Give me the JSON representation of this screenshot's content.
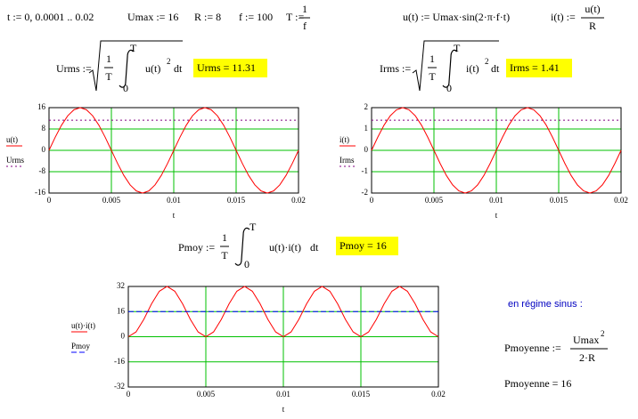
{
  "header": {
    "t_def": "t := 0, 0.0001 .. 0.02",
    "umax": "Umax := 16",
    "r": "R := 8",
    "f": "f := 100",
    "T_lhs": "T :=",
    "T_num": "1",
    "T_den": "f",
    "u_def": "u(t) := Umax·sin(2·π·f·t)",
    "i_lhs": "i(t) :=",
    "i_num": "u(t)",
    "i_den": "R"
  },
  "urms": {
    "lhs": "Urms :=",
    "num": "1",
    "den": "T",
    "upper": "T",
    "lower": "0",
    "integrand": "u(t)",
    "exp": "2",
    "dt": "dt",
    "result": "Urms = 11.31"
  },
  "irms": {
    "lhs": "Irms :=",
    "num": "1",
    "den": "T",
    "upper": "T",
    "lower": "0",
    "integrand": "i(t)",
    "exp": "2",
    "dt": "dt",
    "result": "Irms = 1.41"
  },
  "pmoy": {
    "lhs": "Pmoy :=",
    "num": "1",
    "den": "T",
    "upper": "T",
    "lower": "0",
    "integrand": "u(t)·i(t)",
    "dt": "dt",
    "result": "Pmoy = 16"
  },
  "pmoyenne": {
    "note": "en régime sinus :",
    "lhs": "Pmoyenne :=",
    "num": "Umax",
    "exp": "2",
    "den": "2·R",
    "result": "Pmoyenne = 16"
  },
  "chart_data": [
    {
      "type": "line",
      "xlabel": "t",
      "xlim": [
        0,
        0.02
      ],
      "xticks": [
        0,
        0.005,
        0.01,
        0.015,
        0.02
      ],
      "ylim": [
        -16,
        16
      ],
      "yticks": [
        -16,
        -8,
        0,
        8,
        16
      ],
      "grid": true,
      "grid_color": "#00c000",
      "x": [
        0,
        0.0005,
        0.001,
        0.0015,
        0.002,
        0.0025,
        0.003,
        0.0035,
        0.004,
        0.0045,
        0.005,
        0.0055,
        0.006,
        0.0065,
        0.007,
        0.0075,
        0.008,
        0.0085,
        0.009,
        0.0095,
        0.01,
        0.0105,
        0.011,
        0.0115,
        0.012,
        0.0125,
        0.013,
        0.0135,
        0.014,
        0.0145,
        0.015,
        0.0155,
        0.016,
        0.0165,
        0.017,
        0.0175,
        0.018,
        0.0185,
        0.019,
        0.0195,
        0.02
      ],
      "series": [
        {
          "name": "u(t)",
          "color": "#ff0000",
          "values": [
            0,
            4.94,
            9.4,
            12.94,
            15.22,
            16,
            15.22,
            12.94,
            9.4,
            4.94,
            0,
            -4.94,
            -9.4,
            -12.94,
            -15.22,
            -16,
            -15.22,
            -12.94,
            -9.4,
            -4.94,
            0,
            4.94,
            9.4,
            12.94,
            15.22,
            16,
            15.22,
            12.94,
            9.4,
            4.94,
            0,
            -4.94,
            -9.4,
            -12.94,
            -15.22,
            -16,
            -15.22,
            -12.94,
            -9.4,
            -4.94,
            0
          ]
        },
        {
          "name": "Urms",
          "color": "#800080",
          "style": "dotted",
          "value": 11.31
        }
      ]
    },
    {
      "type": "line",
      "xlabel": "t",
      "xlim": [
        0,
        0.02
      ],
      "xticks": [
        0,
        0.005,
        0.01,
        0.015,
        0.02
      ],
      "ylim": [
        -2,
        2
      ],
      "yticks": [
        -2,
        -1,
        0,
        1,
        2
      ],
      "grid": true,
      "grid_color": "#00c000",
      "x": [
        0,
        0.0005,
        0.001,
        0.0015,
        0.002,
        0.0025,
        0.003,
        0.0035,
        0.004,
        0.0045,
        0.005,
        0.0055,
        0.006,
        0.0065,
        0.007,
        0.0075,
        0.008,
        0.0085,
        0.009,
        0.0095,
        0.01,
        0.0105,
        0.011,
        0.0115,
        0.012,
        0.0125,
        0.013,
        0.0135,
        0.014,
        0.0145,
        0.015,
        0.0155,
        0.016,
        0.0165,
        0.017,
        0.0175,
        0.018,
        0.0185,
        0.019,
        0.0195,
        0.02
      ],
      "series": [
        {
          "name": "i(t)",
          "color": "#ff0000",
          "values": [
            0,
            0.62,
            1.18,
            1.62,
            1.9,
            2,
            1.9,
            1.62,
            1.18,
            0.62,
            0,
            -0.62,
            -1.18,
            -1.62,
            -1.9,
            -2,
            -1.9,
            -1.62,
            -1.18,
            -0.62,
            0,
            0.62,
            1.18,
            1.62,
            1.9,
            2,
            1.9,
            1.62,
            1.18,
            0.62,
            0,
            -0.62,
            -1.18,
            -1.62,
            -1.9,
            -2,
            -1.9,
            -1.62,
            -1.18,
            -0.62,
            0
          ]
        },
        {
          "name": "Irms",
          "color": "#800080",
          "style": "dotted",
          "value": 1.41
        }
      ]
    },
    {
      "type": "line",
      "xlabel": "t",
      "xlim": [
        0,
        0.02
      ],
      "xticks": [
        0,
        0.005,
        0.01,
        0.015,
        0.02
      ],
      "ylim": [
        -32,
        32
      ],
      "yticks": [
        -32,
        -16,
        0,
        16,
        32
      ],
      "grid": true,
      "grid_color": "#00c000",
      "x": [
        0,
        0.0005,
        0.001,
        0.0015,
        0.002,
        0.0025,
        0.003,
        0.0035,
        0.004,
        0.0045,
        0.005,
        0.0055,
        0.006,
        0.0065,
        0.007,
        0.0075,
        0.008,
        0.0085,
        0.009,
        0.0095,
        0.01,
        0.0105,
        0.011,
        0.0115,
        0.012,
        0.0125,
        0.013,
        0.0135,
        0.014,
        0.0145,
        0.015,
        0.0155,
        0.016,
        0.0165,
        0.017,
        0.0175,
        0.018,
        0.0185,
        0.019,
        0.0195,
        0.02
      ],
      "series": [
        {
          "name": "u(t)·i(t)",
          "color": "#ff0000",
          "values": [
            0,
            3.06,
            11.06,
            20.94,
            28.94,
            32,
            28.94,
            20.94,
            11.06,
            3.06,
            0,
            3.06,
            11.06,
            20.94,
            28.94,
            32,
            28.94,
            20.94,
            11.06,
            3.06,
            0,
            3.06,
            11.06,
            20.94,
            28.94,
            32,
            28.94,
            20.94,
            11.06,
            3.06,
            0,
            3.06,
            11.06,
            20.94,
            28.94,
            32,
            28.94,
            20.94,
            11.06,
            3.06,
            0
          ]
        },
        {
          "name": "Pmoy",
          "color": "#0000ff",
          "style": "dashed",
          "value": 16
        }
      ]
    }
  ]
}
